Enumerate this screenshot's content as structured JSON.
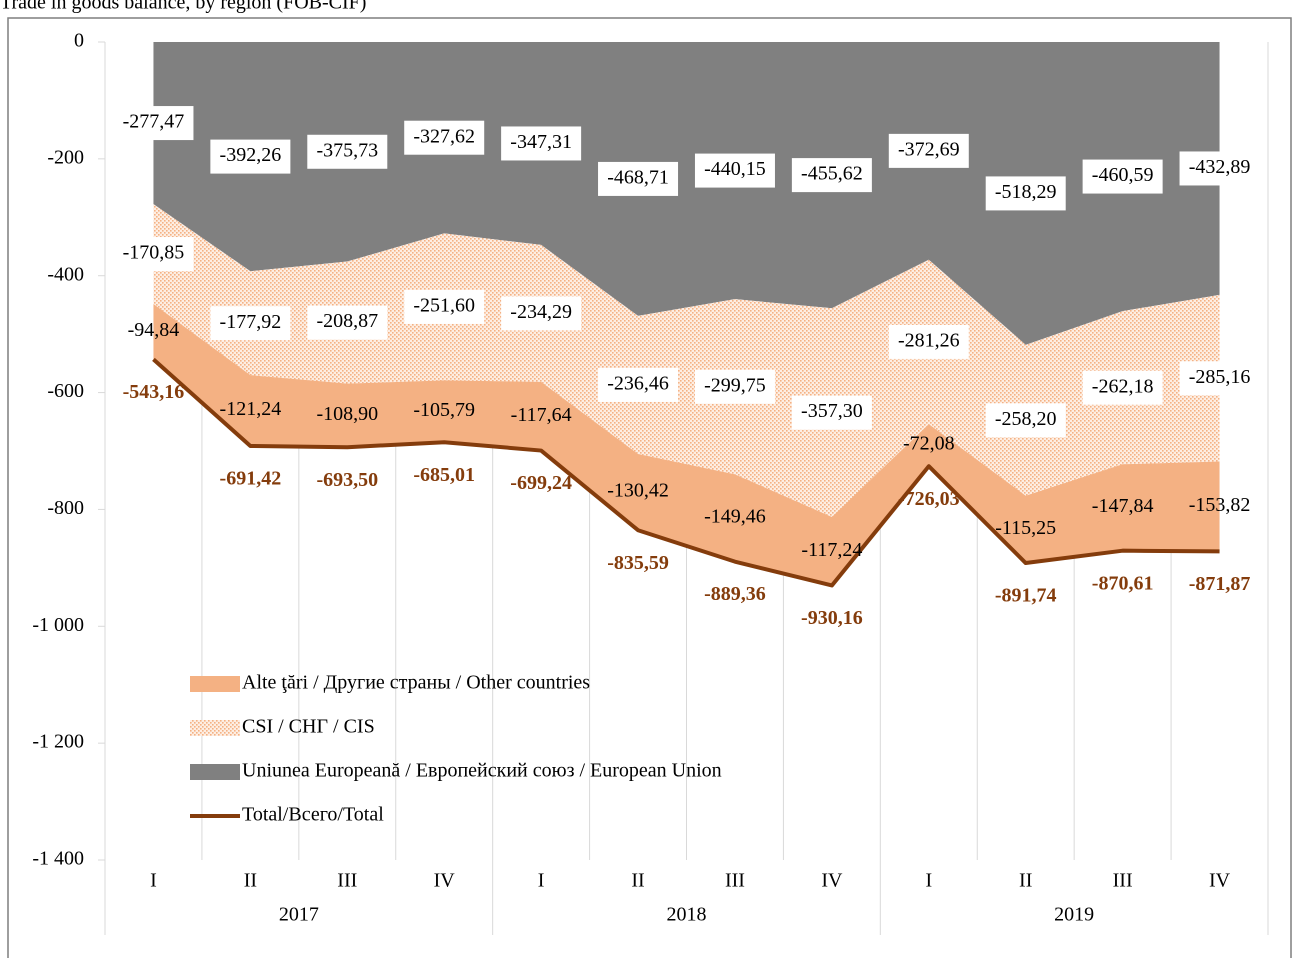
{
  "chart_data": {
    "type": "area",
    "title": "Trade in goods balance, by region (FOB-CIF)",
    "categories": [
      "I",
      "II",
      "III",
      "IV",
      "I",
      "II",
      "III",
      "IV",
      "I",
      "II",
      "III",
      "IV"
    ],
    "years": [
      "2017",
      "2018",
      "2019"
    ],
    "ylim": [
      0,
      -1400
    ],
    "yticks": [
      0,
      -200,
      -400,
      -600,
      -800,
      {
        "value": -1000,
        "label": "-1 000"
      },
      {
        "value": -1200,
        "label": "-1 200"
      },
      {
        "value": -1400,
        "label": "-1 400"
      }
    ],
    "legend": "lower left",
    "series": [
      {
        "name": "Uniunea Europeană / Европейский союз / European Union",
        "type": "area",
        "color": "#808080",
        "values": [
          -277.47,
          -392.26,
          -375.73,
          -327.62,
          -347.31,
          -468.71,
          -440.15,
          -455.62,
          -372.69,
          -518.29,
          -460.59,
          -432.89
        ],
        "value_labels": [
          "-277,47",
          "-392,26",
          "-375,73",
          "-327,62",
          "-347,31",
          "-468,71",
          "-440,15",
          "-455,62",
          "-372,69",
          "-518,29",
          "-460,59",
          "-432,89"
        ]
      },
      {
        "name": "CSI / СНГ / CIS",
        "type": "area",
        "color": "#f4b183",
        "values": [
          -170.85,
          -177.92,
          -208.87,
          -251.6,
          -234.29,
          -236.46,
          -299.75,
          -357.3,
          -281.26,
          -258.2,
          -262.18,
          -285.16
        ],
        "value_labels": [
          "-170,85",
          "-177,92",
          "-208,87",
          "-251,60",
          "-234,29",
          "-236,46",
          "-299,75",
          "-357,30",
          "-281,26",
          "-258,20",
          "-262,18",
          "-285,16"
        ]
      },
      {
        "name": "Alte ţări / Другие страны / Other countries",
        "type": "area",
        "color": "#f4b183",
        "values": [
          -94.84,
          -121.24,
          -108.9,
          -105.79,
          -117.64,
          -130.42,
          -149.46,
          -117.24,
          -72.08,
          -115.25,
          -147.84,
          -153.82
        ],
        "value_labels": [
          "-94,84",
          "-121,24",
          "-108,90",
          "-105,79",
          "-117,64",
          "-130,42",
          "-149,46",
          "-117,24",
          "-72,08",
          "-115,25",
          "-147,84",
          "-153,82"
        ]
      },
      {
        "name": "Total/Всего/Total",
        "type": "line",
        "color": "#843c0c",
        "values": [
          -543.16,
          -691.42,
          -693.5,
          -685.01,
          -699.24,
          -835.59,
          -889.36,
          -930.16,
          -726.03,
          -891.74,
          -870.61,
          -871.87
        ],
        "value_labels": [
          "-543,16",
          "-691,42",
          "-693,50",
          "-685,01",
          "-699,24",
          "-835,59",
          "-889,36",
          "-930,16",
          "-726,03",
          "-891,74",
          "-870,61",
          "-871,87"
        ]
      }
    ]
  }
}
